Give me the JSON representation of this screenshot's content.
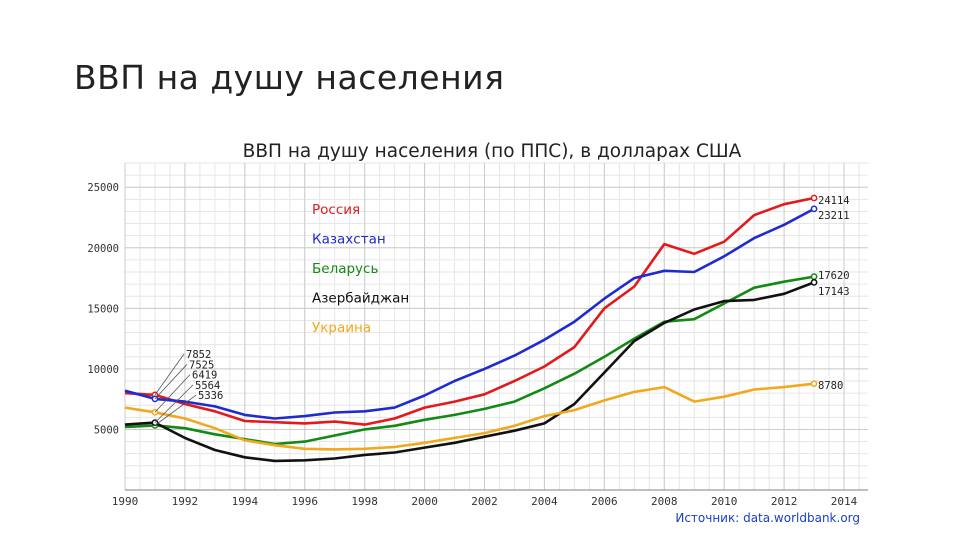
{
  "slide": {
    "title": "ВВП на душу населения"
  },
  "chart_data": {
    "type": "line",
    "title": "ВВП на душу населения (по ППС), в долларах США",
    "source": "Источник: data.worldbank.org",
    "xlabel": "",
    "ylabel": "",
    "xlim": [
      1990,
      2014.8
    ],
    "ylim": [
      0,
      27000
    ],
    "grid": true,
    "legend_position": "top-left",
    "x_ticks": [
      1990,
      1992,
      1994,
      1996,
      1998,
      2000,
      2002,
      2004,
      2006,
      2008,
      2010,
      2012,
      2014
    ],
    "y_ticks": [
      5000,
      10000,
      15000,
      20000,
      25000
    ],
    "x": [
      1990,
      1991,
      1992,
      1993,
      1994,
      1995,
      1996,
      1997,
      1998,
      1999,
      2000,
      2001,
      2002,
      2003,
      2004,
      2005,
      2006,
      2007,
      2008,
      2009,
      2010,
      2011,
      2012,
      2013
    ],
    "series": [
      {
        "name": "Россия",
        "color": "#e31a1c",
        "values": [
          8000,
          7852,
          7100,
          6500,
          5700,
          5600,
          5500,
          5650,
          5400,
          5900,
          6800,
          7300,
          7900,
          9000,
          10200,
          11800,
          15000,
          16800,
          20300,
          19500,
          20500,
          22700,
          23600,
          24114
        ],
        "start_label": "7852",
        "end_label": "24114"
      },
      {
        "name": "Казахстан",
        "color": "#1f2bd1",
        "values": [
          8200,
          7525,
          7300,
          6900,
          6200,
          5900,
          6100,
          6400,
          6500,
          6800,
          7800,
          9000,
          10000,
          11100,
          12400,
          13900,
          15800,
          17500,
          18100,
          18000,
          19300,
          20800,
          21900,
          23211
        ],
        "start_label": "7525",
        "end_label": "23211"
      },
      {
        "name": "Беларусь",
        "color": "#138a13",
        "values": [
          5200,
          5336,
          5100,
          4600,
          4200,
          3800,
          4000,
          4500,
          5000,
          5300,
          5800,
          6200,
          6700,
          7300,
          8400,
          9600,
          11000,
          12500,
          13900,
          14100,
          15400,
          16700,
          17200,
          17620
        ],
        "start_label": "5336",
        "end_label": "17620"
      },
      {
        "name": "Азербайджан",
        "color": "#111111",
        "values": [
          5400,
          5564,
          4300,
          3300,
          2700,
          2400,
          2450,
          2600,
          2900,
          3100,
          3500,
          3900,
          4400,
          4900,
          5500,
          7100,
          9700,
          12300,
          13800,
          14900,
          15600,
          15700,
          16200,
          17143
        ],
        "start_label": "5564",
        "end_label": "17143"
      },
      {
        "name": "Украина",
        "color": "#f2a81d",
        "values": [
          6800,
          6419,
          5900,
          5100,
          4100,
          3700,
          3400,
          3350,
          3400,
          3550,
          3900,
          4300,
          4700,
          5300,
          6100,
          6600,
          7400,
          8100,
          8500,
          7300,
          7700,
          8300,
          8500,
          8780
        ],
        "start_label": "6419",
        "end_label": "8780"
      }
    ]
  }
}
